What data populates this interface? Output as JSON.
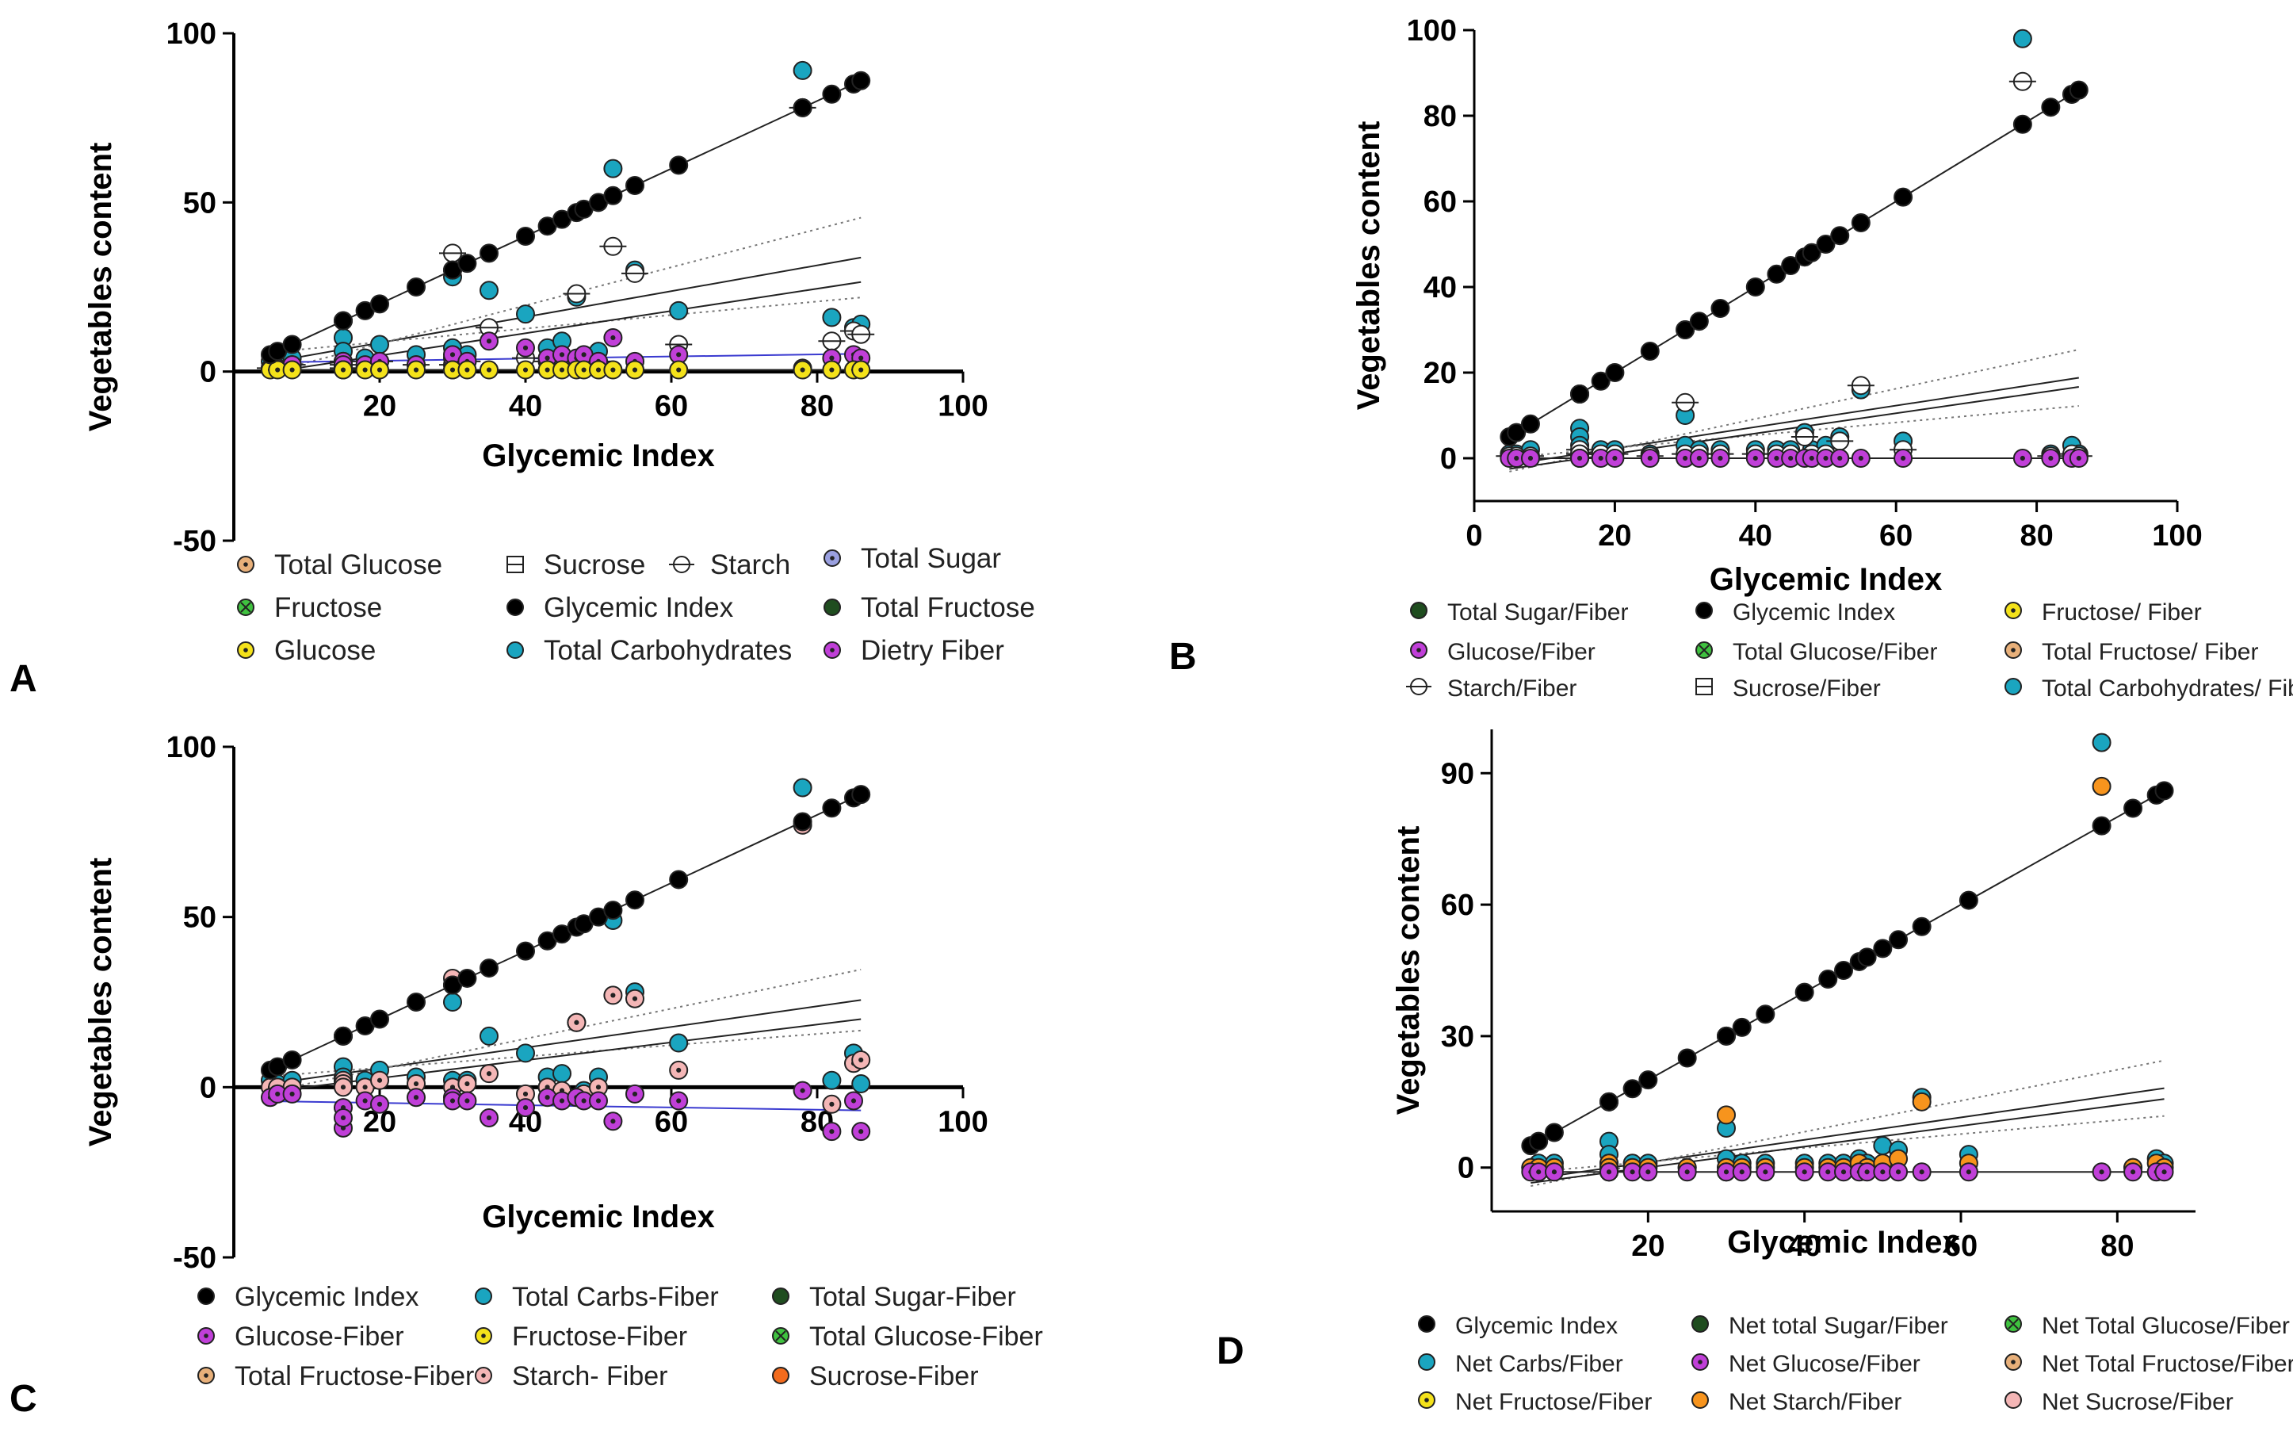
{
  "figure": {
    "panel_letters": [
      "A",
      "B",
      "C",
      "D"
    ]
  },
  "chart_data": [
    {
      "type": "scatter",
      "panel": "A",
      "xlabel": "Glycemic Index",
      "ylabel": "Vegetables content",
      "xlim": [
        0,
        100
      ],
      "ylim": [
        -50,
        100
      ],
      "xticks": [
        20,
        40,
        60,
        80,
        100
      ],
      "xtick_labels": [
        "20",
        "40",
        "60",
        "80",
        "100"
      ],
      "yticks": [
        -50,
        0,
        50,
        100
      ],
      "ytick_labels": [
        "-50",
        "0",
        "50",
        "100"
      ],
      "x": [
        5,
        6,
        8,
        15,
        15,
        15,
        18,
        20,
        25,
        30,
        30,
        32,
        35,
        40,
        43,
        45,
        47,
        48,
        50,
        52,
        55,
        61,
        78,
        82,
        85,
        86
      ],
      "legend": [
        {
          "name": "Total Glucose",
          "color": "#e8b07a",
          "marker": "dot"
        },
        {
          "name": "Fructose",
          "color": "#3fc23f",
          "marker": "cross"
        },
        {
          "name": "Glucose",
          "color": "#f4e21a",
          "marker": "dot"
        },
        {
          "name": "Sucrose",
          "color": "#ffffff",
          "marker": "square"
        },
        {
          "name": "Glycemic Index",
          "color": "#000000",
          "marker": "filled"
        },
        {
          "name": "Total Carbohydrates",
          "color": "#1aa5c0",
          "marker": "filled"
        },
        {
          "name": "Starch",
          "color": "#ffffff",
          "marker": "line"
        },
        {
          "name": "Total Sugar",
          "color": "#9aa0e0",
          "marker": "dot"
        },
        {
          "name": "Total Fructose",
          "color": "#1f4d1f",
          "marker": "filled"
        },
        {
          "name": "Dietry Fiber",
          "color": "#c03fd8",
          "marker": "dot"
        }
      ],
      "series": [
        {
          "name": "Glycemic Index",
          "values": [
            5,
            6,
            8,
            15,
            15,
            15,
            18,
            20,
            25,
            30,
            30,
            32,
            35,
            40,
            43,
            45,
            47,
            48,
            50,
            52,
            55,
            61,
            78,
            82,
            85,
            86
          ]
        },
        {
          "name": "Total Carbohydrates",
          "values": [
            3,
            2,
            4,
            10,
            6,
            3,
            4,
            8,
            5,
            28,
            7,
            5,
            24,
            17,
            7,
            9,
            22,
            4,
            6,
            60,
            30,
            18,
            89,
            16,
            13,
            14
          ]
        },
        {
          "name": "Starch",
          "values": [
            1,
            1,
            2,
            3,
            2,
            1,
            1,
            3,
            2,
            35,
            2,
            3,
            13,
            4,
            3,
            2,
            23,
            2,
            3,
            37,
            29,
            8,
            78,
            9,
            12,
            11
          ]
        },
        {
          "name": "Dietry Fiber",
          "values": [
            1,
            1,
            2,
            2,
            3,
            2,
            2,
            3,
            2,
            4,
            5,
            3,
            9,
            7,
            4,
            5,
            4,
            5,
            3,
            10,
            3,
            5,
            1,
            4,
            5,
            4
          ]
        },
        {
          "name": "Glucose",
          "values": [
            0.5,
            0.5,
            0.5,
            0.5,
            0.5,
            0.5,
            0.5,
            0.5,
            0.5,
            0.5,
            0.5,
            0.5,
            0.5,
            0.5,
            0.5,
            0.5,
            0.5,
            0.5,
            0.5,
            0.5,
            0.5,
            0.5,
            0.5,
            0.5,
            0.5,
            0.5
          ]
        }
      ]
    },
    {
      "type": "scatter",
      "panel": "B",
      "xlabel": "Glycemic Index",
      "ylabel": "Vegetables content",
      "xlim": [
        0,
        100
      ],
      "ylim": [
        -10,
        100
      ],
      "xticks": [
        0,
        20,
        40,
        60,
        80,
        100
      ],
      "xtick_labels": [
        "0",
        "20",
        "40",
        "60",
        "80",
        "100"
      ],
      "yticks": [
        0,
        20,
        40,
        60,
        80,
        100
      ],
      "ytick_labels": [
        "0",
        "20",
        "40",
        "60",
        "80",
        "100"
      ],
      "x": [
        5,
        6,
        8,
        15,
        15,
        15,
        18,
        20,
        25,
        30,
        30,
        32,
        35,
        40,
        43,
        45,
        47,
        48,
        50,
        52,
        55,
        61,
        78,
        82,
        85,
        86
      ],
      "legend": [
        {
          "name": "Total Sugar/Fiber",
          "color": "#1f4d1f",
          "marker": "filled"
        },
        {
          "name": "Glucose/Fiber",
          "color": "#c03fd8",
          "marker": "dot"
        },
        {
          "name": "Starch/Fiber",
          "color": "#ffffff",
          "marker": "line"
        },
        {
          "name": "Glycemic Index",
          "color": "#000000",
          "marker": "filled"
        },
        {
          "name": "Total Glucose/Fiber",
          "color": "#3fc23f",
          "marker": "cross"
        },
        {
          "name": "Sucrose/Fiber",
          "color": "#ffffff",
          "marker": "square"
        },
        {
          "name": "Fructose/ Fiber",
          "color": "#f4e21a",
          "marker": "dot"
        },
        {
          "name": "Total Fructose/ Fiber",
          "color": "#e8b07a",
          "marker": "dot"
        },
        {
          "name": "Total Carbohydrates/ Fiber",
          "color": "#1aa5c0",
          "marker": "filled"
        }
      ],
      "series": [
        {
          "name": "Glycemic Index",
          "values": [
            5,
            6,
            8,
            15,
            15,
            15,
            18,
            20,
            25,
            30,
            30,
            32,
            35,
            40,
            43,
            45,
            47,
            48,
            50,
            52,
            55,
            61,
            78,
            82,
            85,
            86
          ]
        },
        {
          "name": "Total Carbohydrates/ Fiber",
          "values": [
            1,
            1,
            2,
            7,
            5,
            3,
            2,
            2,
            1,
            10,
            3,
            2,
            2,
            2,
            2,
            2,
            6,
            2,
            3,
            5,
            16,
            4,
            98,
            1,
            3,
            1
          ]
        },
        {
          "name": "Starch/Fiber",
          "values": [
            0.5,
            0.5,
            0.5,
            2,
            1,
            1,
            1,
            1,
            0.5,
            13,
            1,
            1,
            1,
            1,
            1,
            1,
            5,
            1,
            1,
            4,
            17,
            2,
            88,
            0.5,
            1,
            0.5
          ]
        },
        {
          "name": "Glucose/Fiber",
          "values": [
            0,
            0,
            0,
            0,
            0,
            0,
            0,
            0,
            0,
            0,
            0,
            0,
            0,
            0,
            0,
            0,
            0,
            0,
            0,
            0,
            0,
            0,
            0,
            0,
            0,
            0
          ]
        }
      ]
    },
    {
      "type": "scatter",
      "panel": "C",
      "xlabel": "Glycemic Index",
      "ylabel": "Vegetables content",
      "xlim": [
        0,
        100
      ],
      "ylim": [
        -50,
        100
      ],
      "xticks": [
        20,
        40,
        60,
        80,
        100
      ],
      "xtick_labels": [
        "20",
        "40",
        "60",
        "80",
        "100"
      ],
      "yticks": [
        -50,
        0,
        50,
        100
      ],
      "ytick_labels": [
        "-50",
        "0",
        "50",
        "100"
      ],
      "x": [
        5,
        6,
        8,
        15,
        15,
        15,
        18,
        20,
        25,
        30,
        30,
        32,
        35,
        40,
        43,
        45,
        47,
        48,
        50,
        52,
        55,
        61,
        78,
        82,
        85,
        86
      ],
      "legend": [
        {
          "name": "Glycemic Index",
          "color": "#000000",
          "marker": "filled"
        },
        {
          "name": "Glucose-Fiber",
          "color": "#c03fd8",
          "marker": "dot"
        },
        {
          "name": "Total Fructose-Fiber",
          "color": "#e8b07a",
          "marker": "dot"
        },
        {
          "name": "Total Carbs-Fiber",
          "color": "#1aa5c0",
          "marker": "filled"
        },
        {
          "name": "Fructose-Fiber",
          "color": "#f4e21a",
          "marker": "dot"
        },
        {
          "name": "Starch- Fiber",
          "color": "#f4b6b6",
          "marker": "dot"
        },
        {
          "name": "Total Sugar-Fiber",
          "color": "#1f4d1f",
          "marker": "filled"
        },
        {
          "name": "Total Glucose-Fiber",
          "color": "#3fc23f",
          "marker": "cross"
        },
        {
          "name": "Sucrose-Fiber",
          "color": "#f26b1d",
          "marker": "filled"
        }
      ],
      "series": [
        {
          "name": "Glycemic Index",
          "values": [
            5,
            6,
            8,
            15,
            15,
            15,
            18,
            20,
            25,
            30,
            30,
            32,
            35,
            40,
            43,
            45,
            47,
            48,
            50,
            52,
            55,
            61,
            78,
            82,
            85,
            86
          ]
        },
        {
          "name": "Total Carbs-Fiber",
          "values": [
            2,
            1,
            2,
            6,
            3,
            1,
            2,
            5,
            3,
            25,
            2,
            2,
            15,
            10,
            3,
            4,
            19,
            -1,
            3,
            49,
            28,
            13,
            88,
            2,
            10,
            1
          ]
        },
        {
          "name": "Starch- Fiber",
          "values": [
            0,
            0,
            0,
            2,
            1,
            0,
            0,
            2,
            1,
            32,
            0,
            1,
            4,
            -2,
            0,
            -1,
            19,
            -2,
            0,
            27,
            26,
            5,
            77,
            -5,
            7,
            8
          ]
        },
        {
          "name": "Glucose-Fiber",
          "values": [
            -3,
            -2,
            -2,
            -12,
            -6,
            -9,
            -4,
            -5,
            -3,
            -3,
            -4,
            -4,
            -9,
            -6,
            -3,
            -4,
            -3,
            -4,
            -4,
            -10,
            -2,
            -4,
            -1,
            -13,
            -4,
            -13
          ]
        }
      ]
    },
    {
      "type": "scatter",
      "panel": "D",
      "xlabel": "Glycemic Index",
      "ylabel": "Vegetables content",
      "xlim": [
        0,
        90
      ],
      "ylim": [
        -10,
        100
      ],
      "xticks": [
        20,
        40,
        60,
        80
      ],
      "xtick_labels": [
        "20",
        "40",
        "60",
        "80"
      ],
      "yticks": [
        0,
        30,
        60,
        90
      ],
      "ytick_labels": [
        "0",
        "30",
        "60",
        "90"
      ],
      "x": [
        5,
        6,
        8,
        15,
        15,
        15,
        18,
        20,
        25,
        30,
        30,
        32,
        35,
        40,
        43,
        45,
        47,
        48,
        50,
        52,
        55,
        61,
        78,
        82,
        85,
        86
      ],
      "legend": [
        {
          "name": "Glycemic Index",
          "color": "#000000",
          "marker": "filled"
        },
        {
          "name": "Net Carbs/Fiber",
          "color": "#1aa5c0",
          "marker": "filled"
        },
        {
          "name": "Net Fructose/Fiber",
          "color": "#f4e21a",
          "marker": "dot"
        },
        {
          "name": "Net total Sugar/Fiber",
          "color": "#1f4d1f",
          "marker": "filled"
        },
        {
          "name": "Net Glucose/Fiber",
          "color": "#c03fd8",
          "marker": "dot"
        },
        {
          "name": "Net Starch/Fiber",
          "color": "#f7941d",
          "marker": "filled"
        },
        {
          "name": "Net Total Glucose/Fiber",
          "color": "#3fc23f",
          "marker": "cross"
        },
        {
          "name": "Net Total Fructose/Fiber",
          "color": "#e8b07a",
          "marker": "dot"
        },
        {
          "name": "Net Sucrose/Fiber",
          "color": "#f4b6b6",
          "marker": "filled"
        }
      ],
      "series": [
        {
          "name": "Glycemic Index",
          "values": [
            5,
            6,
            8,
            15,
            15,
            15,
            18,
            20,
            25,
            30,
            30,
            32,
            35,
            40,
            43,
            45,
            47,
            48,
            50,
            52,
            55,
            61,
            78,
            82,
            85,
            86
          ]
        },
        {
          "name": "Net Carbs/Fiber",
          "values": [
            0,
            1,
            1,
            6,
            3,
            1,
            1,
            1,
            0,
            9,
            2,
            1,
            1,
            1,
            1,
            1,
            2,
            1,
            5,
            4,
            16,
            3,
            97,
            0,
            2,
            1
          ]
        },
        {
          "name": "Net Starch/Fiber",
          "values": [
            0,
            0,
            0,
            1,
            0,
            0,
            0,
            0,
            0,
            12,
            0,
            0,
            0,
            0,
            0,
            0,
            1,
            0,
            1,
            2,
            15,
            1,
            87,
            0,
            1,
            0
          ]
        },
        {
          "name": "Net Glucose/Fiber",
          "values": [
            -1,
            -1,
            -1,
            -1,
            -1,
            -1,
            -1,
            -1,
            -1,
            -1,
            -1,
            -1,
            -1,
            -1,
            -1,
            -1,
            -1,
            -1,
            -1,
            -1,
            -1,
            -1,
            -1,
            -1,
            -1,
            -1
          ]
        }
      ]
    }
  ]
}
